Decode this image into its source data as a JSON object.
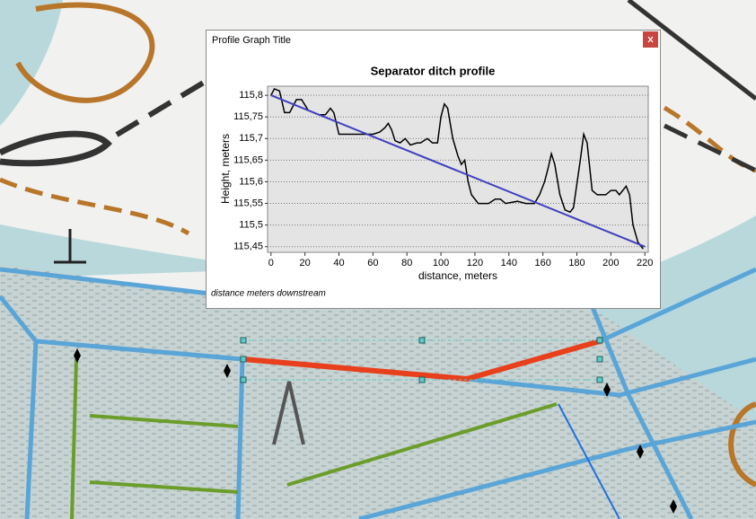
{
  "window": {
    "title": "Profile Graph Title",
    "footer": "distance meters downstream"
  },
  "chart_data": {
    "type": "line",
    "title": "Separator ditch profile",
    "x_label": "distance, meters",
    "y_label": "Height, meters",
    "series": [
      {
        "color": "#000000",
        "x": [
          0,
          2,
          5,
          8,
          11,
          15,
          18,
          22,
          25,
          28,
          32,
          35,
          37,
          40,
          50,
          60,
          64,
          67,
          69,
          71,
          73,
          76,
          79,
          82,
          86,
          88,
          92,
          95,
          98,
          100,
          102,
          104,
          107,
          110,
          112,
          114,
          116,
          118,
          122,
          128,
          132,
          135,
          138,
          145,
          150,
          155,
          158,
          161,
          163,
          165,
          167,
          170,
          173,
          176,
          178,
          182,
          184,
          186,
          189,
          192,
          197,
          200,
          203,
          205,
          207,
          209,
          211,
          213,
          216,
          219
        ],
        "values": [
          115.8,
          115.815,
          115.81,
          115.76,
          115.76,
          115.79,
          115.79,
          115.765,
          115.76,
          115.755,
          115.755,
          115.77,
          115.76,
          115.71,
          115.71,
          115.71,
          115.715,
          115.725,
          115.735,
          115.72,
          115.695,
          115.69,
          115.7,
          115.685,
          115.69,
          115.69,
          115.7,
          115.69,
          115.69,
          115.75,
          115.78,
          115.77,
          115.7,
          115.66,
          115.64,
          115.65,
          115.6,
          115.57,
          115.55,
          115.55,
          115.56,
          115.56,
          115.55,
          115.555,
          115.55,
          115.55,
          115.57,
          115.6,
          115.63,
          115.665,
          115.64,
          115.57,
          115.535,
          115.53,
          115.54,
          115.65,
          115.71,
          115.69,
          115.58,
          115.57,
          115.57,
          115.58,
          115.58,
          115.57,
          115.58,
          115.59,
          115.57,
          115.5,
          115.46,
          115.445
        ]
      },
      {
        "color": "#4040c0",
        "x": [
          0,
          220
        ],
        "values": [
          115.8,
          115.45
        ]
      }
    ],
    "xlim": [
      -2,
      222
    ],
    "xticks": [
      0,
      20,
      40,
      60,
      80,
      100,
      120,
      140,
      160,
      180,
      200,
      220
    ],
    "ylim": [
      115.437,
      115.821
    ],
    "yticks": [
      {
        "value": 115.45,
        "label": "115,45"
      },
      {
        "value": 115.5,
        "label": "115,5"
      },
      {
        "value": 115.55,
        "label": "115,55"
      },
      {
        "value": 115.6,
        "label": "115,6"
      },
      {
        "value": 115.65,
        "label": "115,65"
      },
      {
        "value": 115.7,
        "label": "115,7"
      },
      {
        "value": 115.75,
        "label": "115,75"
      },
      {
        "value": 115.8,
        "label": "115,8"
      }
    ],
    "grid": true
  }
}
